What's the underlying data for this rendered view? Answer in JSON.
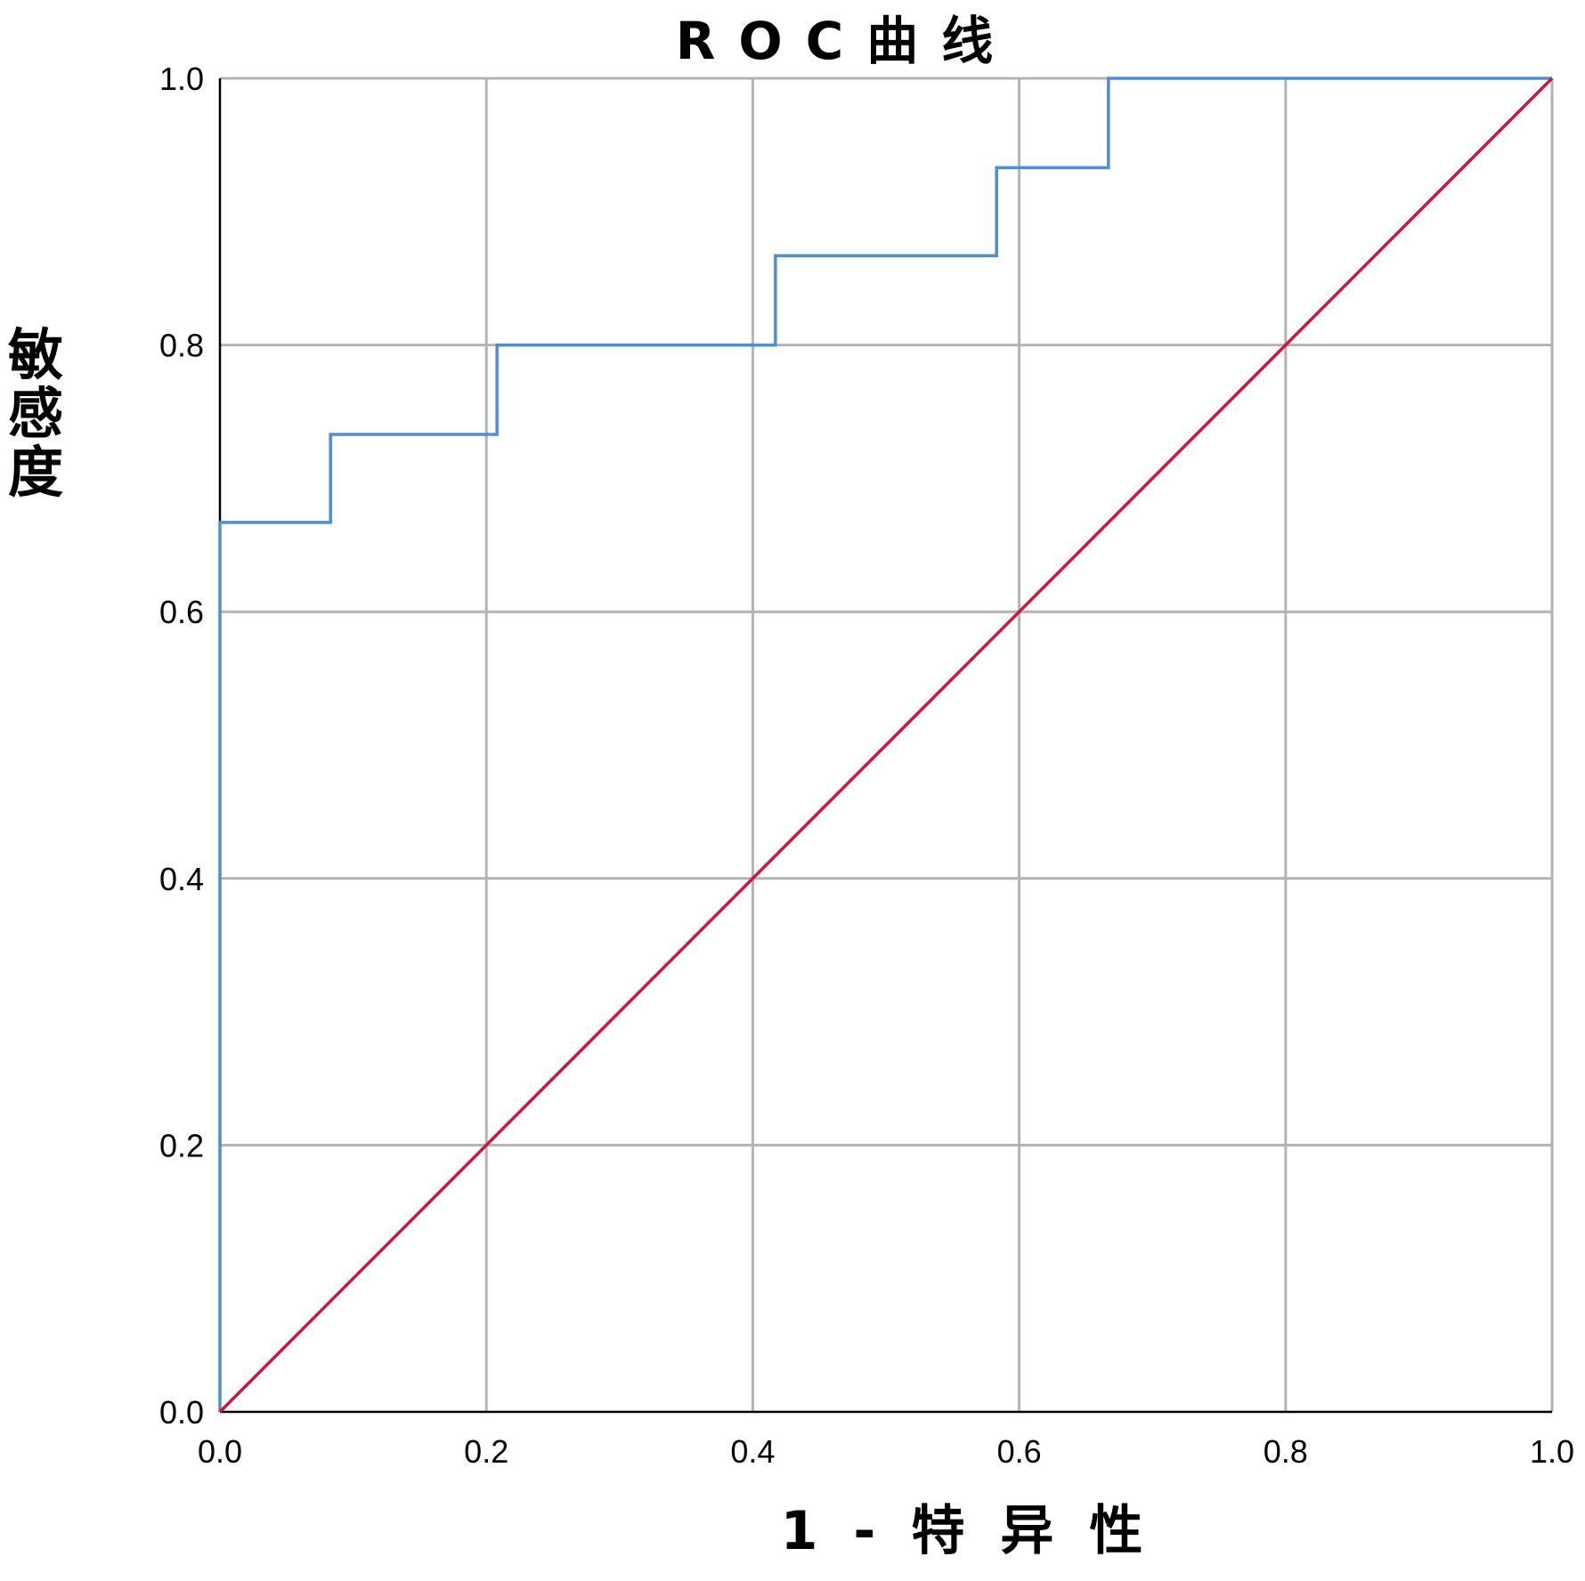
{
  "chart_data": {
    "type": "line",
    "title": "ROC曲线",
    "xlabel": "1-特异性",
    "ylabel": "敏感度",
    "xlim": [
      0,
      1
    ],
    "ylim": [
      0,
      1
    ],
    "x_ticks": [
      "0.0",
      "0.2",
      "0.4",
      "0.6",
      "0.8",
      "1.0"
    ],
    "y_ticks": [
      "0.0",
      "0.2",
      "0.4",
      "0.6",
      "0.8",
      "1.0"
    ],
    "grid": true,
    "legend": "none",
    "series": [
      {
        "kind": "step",
        "color": "#4a90d9",
        "points": [
          [
            0.0,
            0.0
          ],
          [
            0.0,
            0.667
          ],
          [
            0.083,
            0.667
          ],
          [
            0.083,
            0.733
          ],
          [
            0.208,
            0.733
          ],
          [
            0.208,
            0.8
          ],
          [
            0.417,
            0.8
          ],
          [
            0.417,
            0.867
          ],
          [
            0.583,
            0.867
          ],
          [
            0.583,
            0.933
          ],
          [
            0.667,
            0.933
          ],
          [
            0.667,
            1.0
          ],
          [
            1.0,
            1.0
          ]
        ]
      },
      {
        "kind": "reference",
        "color": "#d0143c",
        "points": [
          [
            0.0,
            0.0
          ],
          [
            1.0,
            1.0
          ]
        ]
      }
    ]
  }
}
